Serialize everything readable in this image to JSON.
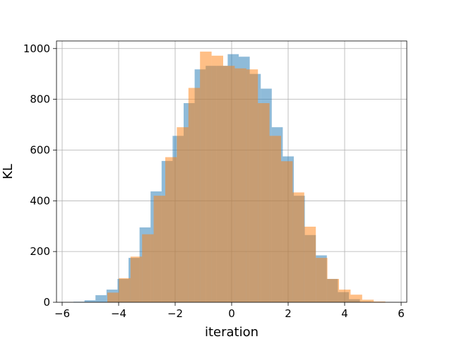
{
  "chart_data": {
    "type": "bar",
    "subtype": "overlapping-histogram",
    "title": "",
    "xlabel": "iteration",
    "ylabel": "KL",
    "xlim": [
      -6.2,
      6.2
    ],
    "ylim": [
      0,
      1030
    ],
    "xticks": [
      -6,
      -4,
      -2,
      0,
      2,
      4,
      6
    ],
    "xtick_labels": [
      "−6",
      "−4",
      "−2",
      "0",
      "2",
      "4",
      "6"
    ],
    "yticks": [
      0,
      200,
      400,
      600,
      800,
      1000
    ],
    "ytick_labels": [
      "0",
      "200",
      "400",
      "600",
      "800",
      "1000"
    ],
    "grid": true,
    "legend": "none",
    "series": [
      {
        "color": "#1f77b4",
        "alpha": 0.5,
        "bins": [
          {
            "x0": -5.6,
            "x1": -5.21,
            "y": 2
          },
          {
            "x0": -5.21,
            "x1": -4.82,
            "y": 8
          },
          {
            "x0": -4.82,
            "x1": -4.43,
            "y": 28
          },
          {
            "x0": -4.43,
            "x1": -4.04,
            "y": 50
          },
          {
            "x0": -4.04,
            "x1": -3.65,
            "y": 92
          },
          {
            "x0": -3.65,
            "x1": -3.26,
            "y": 175
          },
          {
            "x0": -3.26,
            "x1": -2.87,
            "y": 295
          },
          {
            "x0": -2.87,
            "x1": -2.48,
            "y": 437
          },
          {
            "x0": -2.48,
            "x1": -2.09,
            "y": 557
          },
          {
            "x0": -2.09,
            "x1": -1.7,
            "y": 656
          },
          {
            "x0": -1.7,
            "x1": -1.31,
            "y": 785
          },
          {
            "x0": -1.31,
            "x1": -0.92,
            "y": 918
          },
          {
            "x0": -0.92,
            "x1": -0.53,
            "y": 932
          },
          {
            "x0": -0.53,
            "x1": -0.14,
            "y": 932
          },
          {
            "x0": -0.14,
            "x1": 0.25,
            "y": 978
          },
          {
            "x0": 0.25,
            "x1": 0.64,
            "y": 968
          },
          {
            "x0": 0.64,
            "x1": 1.03,
            "y": 900
          },
          {
            "x0": 1.03,
            "x1": 1.42,
            "y": 842
          },
          {
            "x0": 1.42,
            "x1": 1.81,
            "y": 690
          },
          {
            "x0": 1.81,
            "x1": 2.2,
            "y": 575
          },
          {
            "x0": 2.2,
            "x1": 2.59,
            "y": 420
          },
          {
            "x0": 2.59,
            "x1": 2.98,
            "y": 265
          },
          {
            "x0": 2.98,
            "x1": 3.37,
            "y": 185
          },
          {
            "x0": 3.37,
            "x1": 3.76,
            "y": 92
          },
          {
            "x0": 3.76,
            "x1": 4.15,
            "y": 40
          },
          {
            "x0": 4.15,
            "x1": 4.54,
            "y": 12
          },
          {
            "x0": 4.54,
            "x1": 4.93,
            "y": 2
          }
        ]
      },
      {
        "color": "#ff7f0e",
        "alpha": 0.5,
        "bins": [
          {
            "x0": -4.4,
            "x1": -3.99,
            "y": 38
          },
          {
            "x0": -3.99,
            "x1": -3.58,
            "y": 95
          },
          {
            "x0": -3.58,
            "x1": -3.17,
            "y": 180
          },
          {
            "x0": -3.17,
            "x1": -2.76,
            "y": 268
          },
          {
            "x0": -2.76,
            "x1": -2.35,
            "y": 420
          },
          {
            "x0": -2.35,
            "x1": -1.94,
            "y": 572
          },
          {
            "x0": -1.94,
            "x1": -1.53,
            "y": 690
          },
          {
            "x0": -1.53,
            "x1": -1.12,
            "y": 845
          },
          {
            "x0": -1.12,
            "x1": -0.71,
            "y": 988
          },
          {
            "x0": -0.71,
            "x1": -0.3,
            "y": 972
          },
          {
            "x0": -0.3,
            "x1": 0.11,
            "y": 932
          },
          {
            "x0": 0.11,
            "x1": 0.52,
            "y": 922
          },
          {
            "x0": 0.52,
            "x1": 0.93,
            "y": 918
          },
          {
            "x0": 0.93,
            "x1": 1.34,
            "y": 785
          },
          {
            "x0": 1.34,
            "x1": 1.75,
            "y": 656
          },
          {
            "x0": 1.75,
            "x1": 2.16,
            "y": 556
          },
          {
            "x0": 2.16,
            "x1": 2.57,
            "y": 433
          },
          {
            "x0": 2.57,
            "x1": 2.98,
            "y": 298
          },
          {
            "x0": 2.98,
            "x1": 3.39,
            "y": 175
          },
          {
            "x0": 3.39,
            "x1": 3.8,
            "y": 92
          },
          {
            "x0": 3.8,
            "x1": 4.21,
            "y": 50
          },
          {
            "x0": 4.21,
            "x1": 4.62,
            "y": 30
          },
          {
            "x0": 4.62,
            "x1": 5.03,
            "y": 10
          },
          {
            "x0": 5.03,
            "x1": 5.44,
            "y": 3
          }
        ]
      }
    ],
    "colors": {
      "grid": "#b0b0b0",
      "spine": "#000000"
    }
  }
}
